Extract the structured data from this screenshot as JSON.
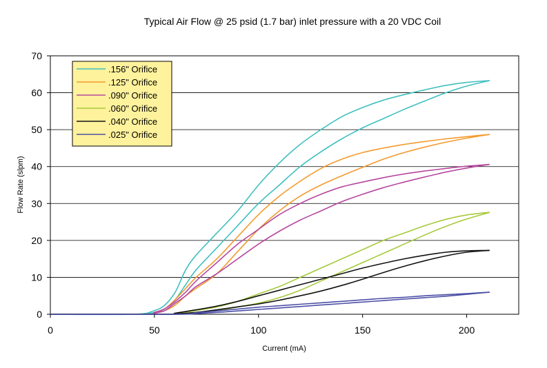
{
  "chart_data": {
    "type": "line",
    "title": "Typical Air Flow @ 25 psid (1.7 bar) inlet pressure with a 20 VDC Coil",
    "xlabel": "Current (mA)",
    "ylabel": "Flow Rate (slpm)",
    "xlim": [
      0,
      225
    ],
    "ylim": [
      0,
      70
    ],
    "xticks": [
      "0",
      "50",
      "100",
      "150",
      "200"
    ],
    "yticks": [
      "0",
      "10",
      "20",
      "30",
      "40",
      "50",
      "60",
      "70"
    ],
    "grid": "horizontal",
    "legend_position": "top-left",
    "series": [
      {
        "name": ".156\" Orifice",
        "color": "#3fbfbf",
        "up": [
          [
            0,
            0
          ],
          [
            40,
            0
          ],
          [
            50,
            1
          ],
          [
            55,
            2.5
          ],
          [
            60,
            6
          ],
          [
            65,
            12
          ],
          [
            70,
            16
          ],
          [
            80,
            22
          ],
          [
            90,
            28
          ],
          [
            100,
            35
          ],
          [
            110,
            41
          ],
          [
            120,
            46
          ],
          [
            130,
            50
          ],
          [
            140,
            53.5
          ],
          [
            150,
            56
          ],
          [
            160,
            58
          ],
          [
            170,
            59.5
          ],
          [
            180,
            60.8
          ],
          [
            190,
            62
          ],
          [
            200,
            62.8
          ],
          [
            211,
            63.3
          ]
        ],
        "down": [
          [
            0,
            0
          ],
          [
            40,
            0
          ],
          [
            50,
            0.5
          ],
          [
            55,
            1.5
          ],
          [
            60,
            4
          ],
          [
            65,
            8
          ],
          [
            70,
            12
          ],
          [
            80,
            18
          ],
          [
            90,
            24
          ],
          [
            100,
            30
          ],
          [
            110,
            35
          ],
          [
            120,
            40
          ],
          [
            130,
            44
          ],
          [
            140,
            47.5
          ],
          [
            150,
            50.5
          ],
          [
            160,
            53
          ],
          [
            170,
            55.5
          ],
          [
            180,
            57.8
          ],
          [
            190,
            60
          ],
          [
            200,
            61.8
          ],
          [
            211,
            63.3
          ]
        ]
      },
      {
        "name": ".125\" Orifice",
        "color": "#f39a2c",
        "up": [
          [
            0,
            0
          ],
          [
            45,
            0
          ],
          [
            50,
            0.5
          ],
          [
            55,
            1.5
          ],
          [
            60,
            4
          ],
          [
            65,
            7
          ],
          [
            70,
            10
          ],
          [
            80,
            15
          ],
          [
            90,
            21
          ],
          [
            100,
            27
          ],
          [
            110,
            32
          ],
          [
            120,
            36
          ],
          [
            130,
            39.5
          ],
          [
            140,
            42
          ],
          [
            150,
            43.8
          ],
          [
            160,
            45
          ],
          [
            170,
            46
          ],
          [
            180,
            46.8
          ],
          [
            190,
            47.5
          ],
          [
            200,
            48.1
          ],
          [
            211,
            48.7
          ]
        ],
        "down": [
          [
            0,
            0
          ],
          [
            45,
            0
          ],
          [
            50,
            0.3
          ],
          [
            55,
            1
          ],
          [
            60,
            2.5
          ],
          [
            65,
            5
          ],
          [
            70,
            7
          ],
          [
            80,
            11
          ],
          [
            90,
            17
          ],
          [
            100,
            23
          ],
          [
            110,
            28
          ],
          [
            120,
            32
          ],
          [
            130,
            35
          ],
          [
            140,
            37.5
          ],
          [
            150,
            39.8
          ],
          [
            160,
            42
          ],
          [
            170,
            43.8
          ],
          [
            180,
            45.3
          ],
          [
            190,
            46.6
          ],
          [
            200,
            47.7
          ],
          [
            211,
            48.7
          ]
        ]
      },
      {
        "name": ".090\" Orifice",
        "color": "#b5479e",
        "up": [
          [
            0,
            0
          ],
          [
            45,
            0
          ],
          [
            50,
            0.5
          ],
          [
            55,
            1.5
          ],
          [
            60,
            3.5
          ],
          [
            65,
            6
          ],
          [
            70,
            9
          ],
          [
            80,
            14
          ],
          [
            90,
            19
          ],
          [
            100,
            23
          ],
          [
            110,
            27
          ],
          [
            120,
            30
          ],
          [
            130,
            32.5
          ],
          [
            140,
            34.5
          ],
          [
            150,
            35.8
          ],
          [
            160,
            37
          ],
          [
            170,
            38
          ],
          [
            180,
            38.8
          ],
          [
            190,
            39.5
          ],
          [
            200,
            40.1
          ],
          [
            211,
            40.6
          ]
        ],
        "down": [
          [
            0,
            0
          ],
          [
            45,
            0
          ],
          [
            50,
            0.3
          ],
          [
            55,
            1
          ],
          [
            60,
            3
          ],
          [
            65,
            5
          ],
          [
            70,
            7.5
          ],
          [
            80,
            11
          ],
          [
            90,
            15
          ],
          [
            100,
            19
          ],
          [
            110,
            22.5
          ],
          [
            120,
            25.5
          ],
          [
            130,
            28
          ],
          [
            140,
            30.5
          ],
          [
            150,
            32.5
          ],
          [
            160,
            34.3
          ],
          [
            170,
            35.8
          ],
          [
            180,
            37.2
          ],
          [
            190,
            38.5
          ],
          [
            200,
            39.6
          ],
          [
            211,
            40.6
          ]
        ]
      },
      {
        "name": ".060\" Orifice",
        "color": "#a5c93a",
        "up": [
          [
            0,
            0
          ],
          [
            55,
            0
          ],
          [
            60,
            0.2
          ],
          [
            70,
            1
          ],
          [
            80,
            2
          ],
          [
            90,
            3.5
          ],
          [
            100,
            5.5
          ],
          [
            110,
            7.5
          ],
          [
            120,
            10
          ],
          [
            130,
            12.5
          ],
          [
            140,
            15
          ],
          [
            150,
            17.5
          ],
          [
            160,
            20
          ],
          [
            170,
            22
          ],
          [
            180,
            24
          ],
          [
            190,
            25.7
          ],
          [
            200,
            26.9
          ],
          [
            211,
            27.6
          ]
        ],
        "down": [
          [
            0,
            0
          ],
          [
            55,
            0
          ],
          [
            60,
            0.1
          ],
          [
            70,
            0.5
          ],
          [
            80,
            1
          ],
          [
            90,
            2
          ],
          [
            100,
            3
          ],
          [
            110,
            4.5
          ],
          [
            120,
            6.5
          ],
          [
            130,
            9
          ],
          [
            140,
            11.5
          ],
          [
            150,
            14
          ],
          [
            160,
            16.5
          ],
          [
            170,
            19
          ],
          [
            180,
            21.5
          ],
          [
            190,
            23.8
          ],
          [
            200,
            25.8
          ],
          [
            211,
            27.6
          ]
        ]
      },
      {
        "name": ".040\" Orifice",
        "color": "#111111",
        "up": [
          [
            0,
            0
          ],
          [
            55,
            0
          ],
          [
            60,
            0.3
          ],
          [
            70,
            1.2
          ],
          [
            80,
            2.2
          ],
          [
            90,
            3.5
          ],
          [
            100,
            5
          ],
          [
            110,
            6.5
          ],
          [
            120,
            8
          ],
          [
            130,
            9.5
          ],
          [
            140,
            11
          ],
          [
            150,
            12.5
          ],
          [
            160,
            13.8
          ],
          [
            170,
            15
          ],
          [
            180,
            16
          ],
          [
            190,
            16.8
          ],
          [
            200,
            17.2
          ],
          [
            211,
            17.3
          ]
        ],
        "down": [
          [
            0,
            0
          ],
          [
            55,
            0
          ],
          [
            60,
            0.1
          ],
          [
            70,
            0.5
          ],
          [
            80,
            1.2
          ],
          [
            90,
            2
          ],
          [
            100,
            2.8
          ],
          [
            110,
            3.8
          ],
          [
            120,
            5
          ],
          [
            130,
            6.3
          ],
          [
            140,
            7.8
          ],
          [
            150,
            9.5
          ],
          [
            160,
            11.3
          ],
          [
            170,
            13
          ],
          [
            180,
            14.5
          ],
          [
            190,
            15.8
          ],
          [
            200,
            16.8
          ],
          [
            211,
            17.3
          ]
        ]
      },
      {
        "name": ".025\" Orifice",
        "color": "#4b4fa5",
        "up": [
          [
            0,
            0
          ],
          [
            60,
            0
          ],
          [
            70,
            0.4
          ],
          [
            80,
            0.9
          ],
          [
            90,
            1.4
          ],
          [
            100,
            1.9
          ],
          [
            110,
            2.3
          ],
          [
            120,
            2.7
          ],
          [
            130,
            3.1
          ],
          [
            140,
            3.5
          ],
          [
            150,
            3.9
          ],
          [
            160,
            4.3
          ],
          [
            170,
            4.6
          ],
          [
            180,
            5
          ],
          [
            190,
            5.3
          ],
          [
            200,
            5.6
          ],
          [
            211,
            6
          ]
        ],
        "down": [
          [
            0,
            0
          ],
          [
            60,
            0
          ],
          [
            70,
            0.2
          ],
          [
            80,
            0.5
          ],
          [
            90,
            0.9
          ],
          [
            100,
            1.3
          ],
          [
            110,
            1.7
          ],
          [
            120,
            2.1
          ],
          [
            130,
            2.5
          ],
          [
            140,
            2.9
          ],
          [
            150,
            3.3
          ],
          [
            160,
            3.7
          ],
          [
            170,
            4.1
          ],
          [
            180,
            4.5
          ],
          [
            190,
            4.9
          ],
          [
            200,
            5.4
          ],
          [
            211,
            6
          ]
        ]
      }
    ]
  }
}
